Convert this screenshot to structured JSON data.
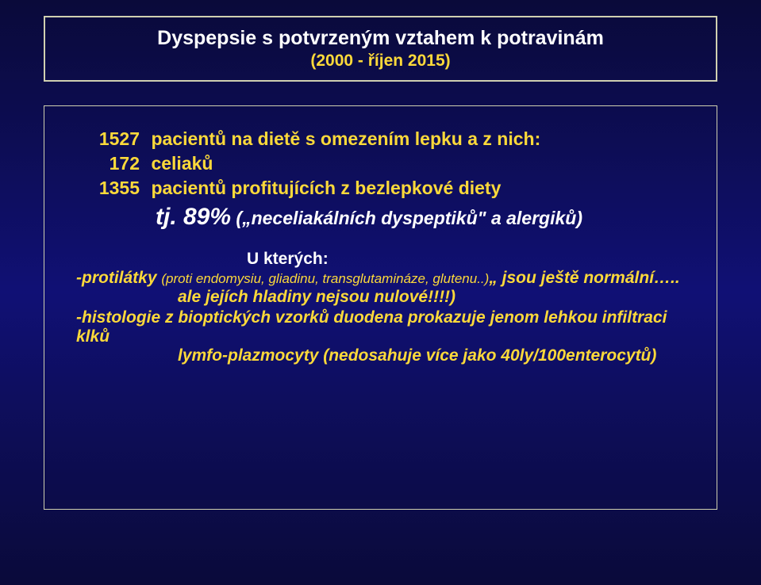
{
  "colors": {
    "background_gradient_top": "#0a0a3a",
    "background_gradient_mid": "#101075",
    "border": "#d0d0b0",
    "title_text": "#ffffff",
    "body_text": "#fcd93a",
    "highlight_text": "#ffffff"
  },
  "typography": {
    "title_fontsize": 25,
    "subtitle_fontsize": 21,
    "body_fontsize": 23,
    "percent_fontsize": 30,
    "detail_fontsize": 21,
    "paren_fontsize": 17,
    "font_family": "Verdana"
  },
  "header": {
    "title": "Dyspepsie s potvrzeným vztahem k potravinám",
    "subtitle": "(2000 - říjen 2015)"
  },
  "stats": {
    "row1": {
      "number": "1527",
      "text": "pacientů na dietě s omezením lepku a z nich:"
    },
    "row2": {
      "number": "172",
      "text": "celiaků"
    },
    "row3": {
      "number": "1355",
      "text": "pacientů profitujících z bezlepkové diety"
    },
    "percent": {
      "prefix": "tj. ",
      "value": "89%",
      "suffix": " („neceliakálních dyspeptiků\" a alergiků)"
    }
  },
  "details": {
    "ukterych": "U kterých:",
    "protilatky": {
      "label": "-protilátky ",
      "paren": "(proti endomysiu, gliadinu, transglutamináze, glutenu..)",
      "tail": "„ jsou ještě normální….."
    },
    "ale_line": "ale jejích hladiny nejsou nulové!!!!)",
    "histologie": {
      "line1": "-histologie z bioptických vzorků duodena prokazuje jenom lehkou infiltraci klků",
      "line2": "lymfo-plazmocyty (nedosahuje více jako 40ly/100enterocytů)"
    }
  }
}
